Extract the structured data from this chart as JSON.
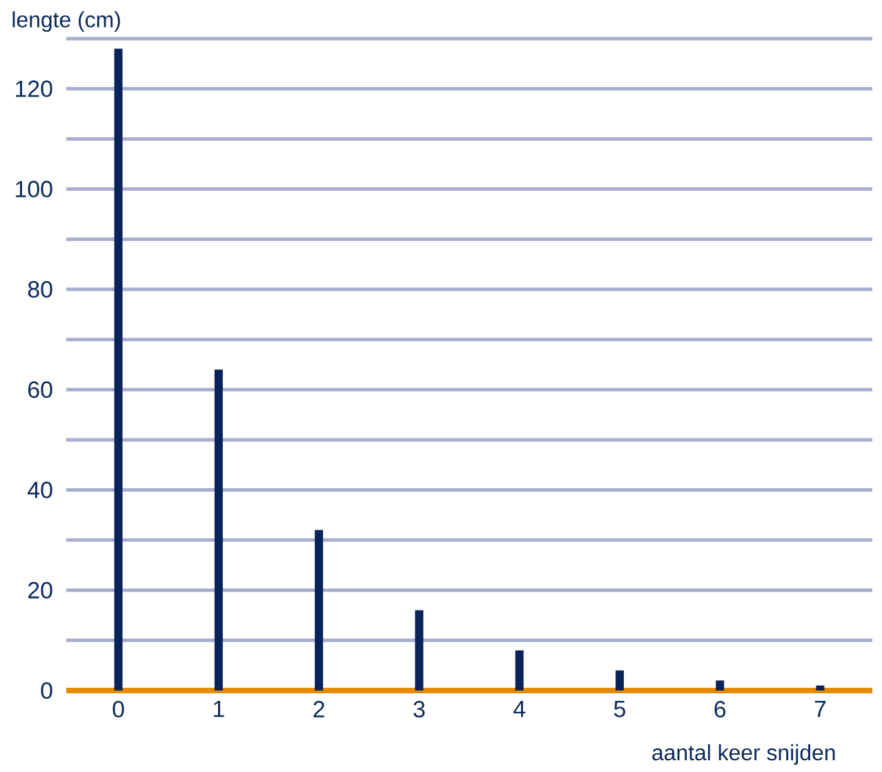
{
  "chart_data": {
    "type": "bar",
    "xlabel": "aantal keer snijden",
    "ylabel": "lengte (cm)",
    "x": [
      0,
      1,
      2,
      3,
      4,
      5,
      6,
      7
    ],
    "values": [
      128,
      64,
      32,
      16,
      8,
      4,
      2,
      1
    ],
    "color": "#0a2459",
    "xlim": [
      -0.52,
      7.52
    ],
    "ylim": [
      0,
      130
    ],
    "xticks": [
      0,
      1,
      2,
      3,
      4,
      5,
      6,
      7
    ],
    "yticks": [
      0,
      {
        "value": 10,
        "label": null
      },
      20,
      {
        "value": 30,
        "label": null
      },
      40,
      {
        "value": 50,
        "label": null
      },
      60,
      {
        "value": 70,
        "label": null
      },
      80,
      {
        "value": 90,
        "label": null
      },
      100,
      {
        "value": 110,
        "label": null
      },
      120,
      {
        "value": 130,
        "label": null
      }
    ],
    "grid": "y"
  }
}
